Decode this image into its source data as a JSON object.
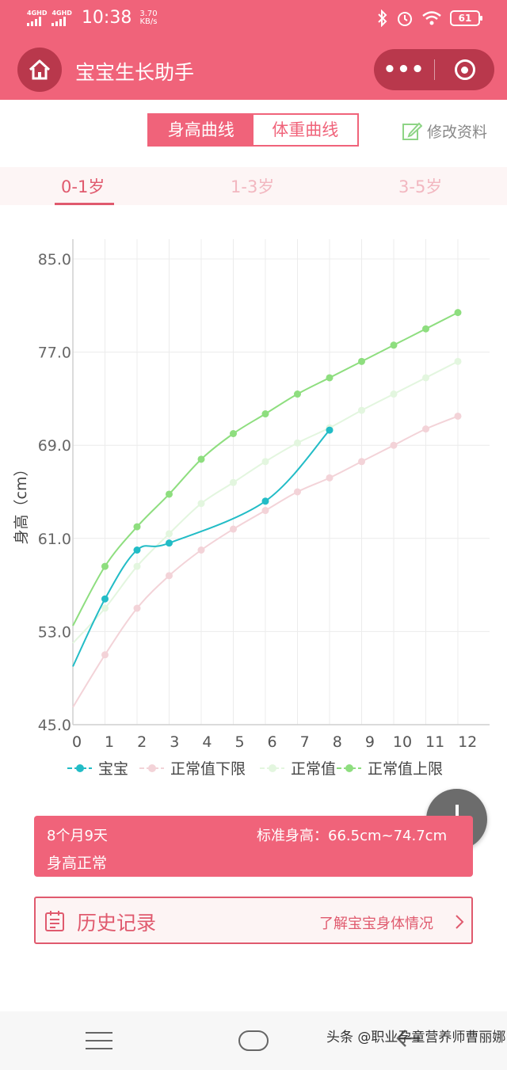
{
  "status_bar": {
    "sim1": "4GHD",
    "sim2": "4GHD",
    "time": "10:38",
    "speed_value": "3.70",
    "speed_unit": "KB/s",
    "battery": "61"
  },
  "app_bar": {
    "title": "宝宝生长助手",
    "more_label": "•••"
  },
  "toggle": {
    "height_label": "身高曲线",
    "weight_label": "体重曲线"
  },
  "edit_label": "修改资料",
  "age_tabs": [
    "0-1岁",
    "1-3岁",
    "3-5岁"
  ],
  "chart_data": {
    "type": "line",
    "ylabel": "身高（cm）",
    "xlabel": "",
    "x_ticks": [
      "0",
      "1",
      "2",
      "3",
      "4",
      "5",
      "6",
      "7",
      "8",
      "9",
      "10",
      "11",
      "12"
    ],
    "y_ticks": [
      "85.0",
      "77.0",
      "69.0",
      "61.0",
      "53.0",
      "45.0"
    ],
    "ylim": [
      45,
      85
    ],
    "xlim": [
      0,
      12
    ],
    "grid": true,
    "legend_position": "bottom",
    "series": [
      {
        "name": "宝宝",
        "color": "#22bcc6",
        "x": [
          0,
          1,
          2,
          3,
          6,
          8
        ],
        "y": [
          50.0,
          55.8,
          60.0,
          60.6,
          64.2,
          70.3
        ]
      },
      {
        "name": "正常值下限",
        "color": "#f3d3d8",
        "x": [
          0,
          1,
          2,
          3,
          4,
          5,
          6,
          7,
          8,
          9,
          10,
          11,
          12
        ],
        "y": [
          46.5,
          51.0,
          55.0,
          57.8,
          60.0,
          61.8,
          63.4,
          65.0,
          66.2,
          67.6,
          69.0,
          70.4,
          71.5
        ]
      },
      {
        "name": "正常值",
        "color": "#e3f6df",
        "x": [
          0,
          1,
          2,
          3,
          4,
          5,
          6,
          7,
          8,
          9,
          10,
          11,
          12
        ],
        "y": [
          52.0,
          55.0,
          58.6,
          61.4,
          64.0,
          65.8,
          67.6,
          69.2,
          70.5,
          72.0,
          73.4,
          74.8,
          76.2
        ]
      },
      {
        "name": "正常值上限",
        "color": "#8ede7f",
        "x": [
          0,
          1,
          2,
          3,
          4,
          5,
          6,
          7,
          8,
          9,
          10,
          11,
          12
        ],
        "y": [
          53.5,
          58.6,
          62.0,
          64.8,
          67.8,
          70.0,
          71.7,
          73.4,
          74.8,
          76.2,
          77.6,
          79.0,
          80.4
        ]
      }
    ]
  },
  "info_card": {
    "age": "8个月9天",
    "standard": "标准身高：66.5cm~74.7cm",
    "status": "身高正常"
  },
  "history": {
    "title": "历史记录",
    "link": "了解宝宝身体情况"
  },
  "watermark": "头条 @职业孕童营养师曹丽娜"
}
